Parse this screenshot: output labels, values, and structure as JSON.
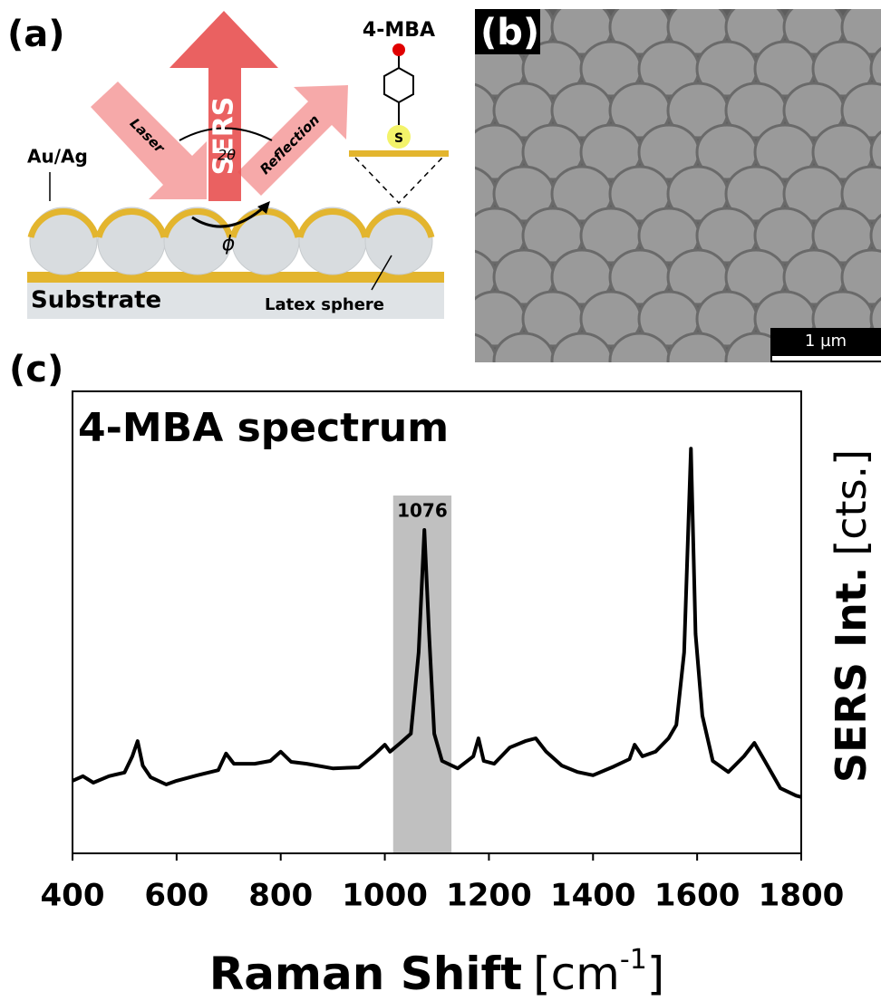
{
  "panel_a": {
    "label": "(a)",
    "sers": "SERS",
    "laser": "Laser",
    "reflection": "Reflection",
    "angle": "2θ",
    "phi": "ϕ",
    "metal": "Au/Ag",
    "substrate": "Substrate",
    "sphere": "Latex sphere",
    "molecule": "4-MBA",
    "sulfur": "S"
  },
  "panel_b": {
    "label": "(b)",
    "scale_bar": "1 µm"
  },
  "chart_data": {
    "type": "line",
    "panel_label": "(c)",
    "title": "4-MBA spectrum",
    "xlabel": "Raman Shift",
    "xlabel_unit": [
      "[cm",
      "-1",
      "]"
    ],
    "ylabel": "SERS Int.",
    "ylabel_unit": "[cts.]",
    "color": "#000000",
    "x": [
      400,
      420,
      440,
      470,
      500,
      515,
      525,
      535,
      550,
      580,
      600,
      640,
      680,
      695,
      710,
      750,
      780,
      800,
      820,
      850,
      900,
      950,
      980,
      1000,
      1010,
      1030,
      1050,
      1065,
      1076,
      1085,
      1095,
      1110,
      1140,
      1170,
      1180,
      1190,
      1210,
      1240,
      1270,
      1290,
      1310,
      1340,
      1370,
      1400,
      1440,
      1470,
      1480,
      1495,
      1520,
      1545,
      1560,
      1575,
      1588,
      1597,
      1610,
      1630,
      1660,
      1690,
      1710,
      1730,
      1760,
      1790,
      1800
    ],
    "values": [
      15.7,
      16.7,
      15.3,
      16.7,
      17.5,
      21.0,
      24.3,
      19.0,
      16.5,
      14.9,
      15.7,
      16.9,
      18.0,
      21.6,
      19.4,
      19.4,
      20.0,
      22.0,
      19.8,
      19.4,
      18.4,
      18.6,
      21.4,
      23.5,
      22.0,
      23.9,
      25.9,
      43.5,
      70.0,
      47.5,
      25.9,
      20.0,
      18.4,
      21.0,
      24.9,
      20.0,
      19.4,
      22.9,
      24.3,
      24.9,
      22.0,
      19.0,
      17.6,
      16.9,
      18.8,
      20.4,
      23.5,
      21.0,
      22.0,
      24.9,
      27.8,
      43.5,
      87.6,
      47.5,
      29.8,
      20.0,
      17.6,
      21.0,
      23.9,
      20.0,
      14.1,
      12.5,
      12.2
    ],
    "xlim": [
      400,
      1800
    ],
    "xticks": [
      400,
      600,
      800,
      1000,
      1200,
      1400,
      1600,
      1800
    ],
    "ylim": [
      0,
      100
    ],
    "highlight": {
      "range": [
        1016,
        1128
      ],
      "label": "1076",
      "color": "#c0c0c0"
    }
  }
}
